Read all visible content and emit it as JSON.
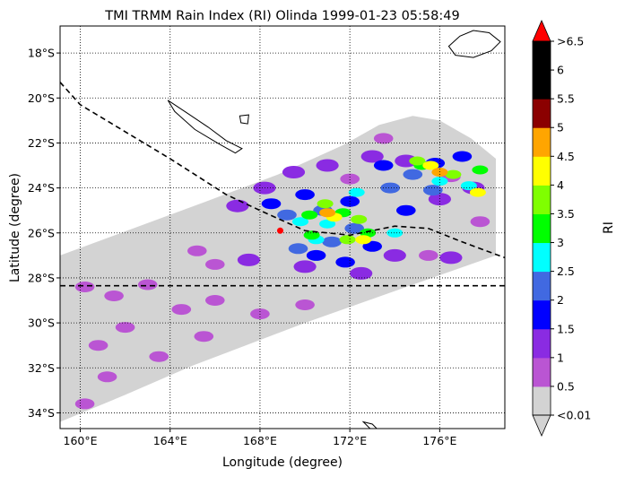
{
  "chart_data": {
    "type": "heatmap",
    "title": "TMI TRMM Rain Index (RI) Olinda 1999-01-23 05:58:49",
    "xlabel": "Longitude (degree)",
    "ylabel": "Latitude (degree)",
    "xlim": [
      159.1,
      178.9
    ],
    "ylim": [
      -34.7,
      -16.8
    ],
    "x_ticks": [
      {
        "value": 160,
        "label": "160°E"
      },
      {
        "value": 164,
        "label": "164°E"
      },
      {
        "value": 168,
        "label": "168°E"
      },
      {
        "value": 172,
        "label": "172°E"
      },
      {
        "value": 176,
        "label": "176°E"
      }
    ],
    "y_ticks": [
      {
        "value": -18,
        "label": "18°S"
      },
      {
        "value": -20,
        "label": "20°S"
      },
      {
        "value": -22,
        "label": "22°S"
      },
      {
        "value": -24,
        "label": "24°S"
      },
      {
        "value": -26,
        "label": "26°S"
      },
      {
        "value": -28,
        "label": "28°S"
      },
      {
        "value": -30,
        "label": "30°S"
      },
      {
        "value": -32,
        "label": "32°S"
      },
      {
        "value": -34,
        "label": "34°S"
      }
    ],
    "grid": true,
    "grid_x": [
      160,
      164,
      168,
      172,
      176
    ],
    "grid_y": [
      -18,
      -20,
      -22,
      -24,
      -26,
      -28,
      -30,
      -32,
      -34
    ],
    "colorbar": {
      "label": "RI",
      "tick_labels": [
        "<0.01",
        "0.5",
        "1",
        "1.5",
        "2",
        "2.5",
        "3",
        "3.5",
        "4",
        "4.5",
        "5",
        "5.5",
        "6",
        ">6.5"
      ],
      "colors": [
        "#d3d3d3",
        "#ba55d3",
        "#8a2be2",
        "#0000ff",
        "#4169e1",
        "#00ffff",
        "#00ff00",
        "#7fff00",
        "#ffff00",
        "#ffa500",
        "#8b0000",
        "#000000",
        "#000000",
        "#000000"
      ],
      "over_color": "#ff0000",
      "under_color": "#d3d3d3"
    },
    "swath_outline": [
      [
        159.1,
        -27.0
      ],
      [
        165.6,
        -24.6
      ],
      [
        168.8,
        -23.4
      ],
      [
        171.7,
        -22.1
      ],
      [
        173.3,
        -21.2
      ],
      [
        174.8,
        -20.8
      ],
      [
        176.0,
        -21.0
      ],
      [
        177.4,
        -21.8
      ],
      [
        178.5,
        -22.7
      ],
      [
        178.5,
        -27.0
      ],
      [
        174.8,
        -28.3
      ],
      [
        170.0,
        -30.0
      ],
      [
        165.0,
        -31.9
      ],
      [
        162.0,
        -33.2
      ],
      [
        159.1,
        -34.4
      ]
    ],
    "storm_center": {
      "lon": 168.9,
      "lat": -25.9
    },
    "dashed_tracks": [
      [
        [
          159.1,
          -19.3
        ],
        [
          160.0,
          -20.3
        ],
        [
          162.0,
          -21.5
        ],
        [
          164.0,
          -22.7
        ],
        [
          166.5,
          -24.3
        ],
        [
          168.0,
          -25.0
        ],
        [
          170.0,
          -25.9
        ],
        [
          172.0,
          -26.1
        ],
        [
          174.0,
          -25.7
        ],
        [
          175.5,
          -25.8
        ],
        [
          177.0,
          -26.4
        ],
        [
          178.9,
          -27.1
        ]
      ],
      [
        [
          159.1,
          -28.35
        ],
        [
          178.9,
          -28.35
        ]
      ]
    ],
    "coastlines": [
      [
        [
          176.4,
          -17.7
        ],
        [
          176.9,
          -17.25
        ],
        [
          177.5,
          -17.0
        ],
        [
          178.2,
          -17.1
        ],
        [
          178.7,
          -17.5
        ],
        [
          178.3,
          -17.9
        ],
        [
          177.5,
          -18.2
        ],
        [
          176.7,
          -18.1
        ],
        [
          176.4,
          -17.7
        ]
      ],
      [
        [
          163.9,
          -20.1
        ],
        [
          164.8,
          -20.7
        ],
        [
          165.7,
          -21.3
        ],
        [
          166.5,
          -21.9
        ],
        [
          167.2,
          -22.25
        ],
        [
          166.9,
          -22.45
        ],
        [
          166.1,
          -22.0
        ],
        [
          165.1,
          -21.4
        ],
        [
          164.2,
          -20.6
        ],
        [
          163.9,
          -20.1
        ]
      ],
      [
        [
          167.1,
          -20.8
        ],
        [
          167.5,
          -20.75
        ],
        [
          167.45,
          -21.15
        ],
        [
          167.15,
          -21.1
        ],
        [
          167.1,
          -20.8
        ]
      ],
      [
        [
          172.6,
          -34.4
        ],
        [
          173.0,
          -34.5
        ],
        [
          173.3,
          -34.8
        ],
        [
          172.9,
          -34.7
        ],
        [
          172.6,
          -34.4
        ]
      ]
    ],
    "rain_bands": [
      {
        "ri": 0.5,
        "points": [
          [
            160.2,
            -28.4
          ],
          [
            161.5,
            -28.8
          ],
          [
            163.0,
            -28.3
          ],
          [
            164.5,
            -29.4
          ],
          [
            166.0,
            -29.0
          ],
          [
            168.0,
            -29.6
          ],
          [
            170.0,
            -29.2
          ],
          [
            162.0,
            -30.2
          ],
          [
            160.8,
            -31.0
          ],
          [
            163.5,
            -31.5
          ],
          [
            165.5,
            -30.6
          ],
          [
            161.2,
            -32.4
          ],
          [
            160.2,
            -33.6
          ],
          [
            165.2,
            -26.8
          ],
          [
            166.0,
            -27.4
          ],
          [
            172.0,
            -23.6
          ],
          [
            176.5,
            -23.5
          ],
          [
            173.5,
            -21.8
          ],
          [
            177.8,
            -25.5
          ],
          [
            175.5,
            -27.0
          ]
        ]
      },
      {
        "ri": 1.0,
        "points": [
          [
            167.0,
            -24.8
          ],
          [
            168.2,
            -24.0
          ],
          [
            169.5,
            -23.3
          ],
          [
            171.0,
            -23.0
          ],
          [
            173.0,
            -22.6
          ],
          [
            174.5,
            -22.8
          ],
          [
            176.0,
            -24.5
          ],
          [
            177.5,
            -24.0
          ],
          [
            170.0,
            -27.5
          ],
          [
            172.5,
            -27.8
          ],
          [
            174.0,
            -27.0
          ],
          [
            167.5,
            -27.2
          ],
          [
            176.5,
            -27.1
          ]
        ]
      },
      {
        "ri": 1.5,
        "points": [
          [
            168.5,
            -24.7
          ],
          [
            170.0,
            -24.3
          ],
          [
            172.0,
            -24.6
          ],
          [
            173.5,
            -23.0
          ],
          [
            174.5,
            -25.0
          ],
          [
            170.5,
            -27.0
          ],
          [
            171.8,
            -27.3
          ],
          [
            173.0,
            -26.6
          ],
          [
            175.8,
            -22.9
          ],
          [
            177.0,
            -22.6
          ]
        ]
      },
      {
        "ri": 2.0,
        "points": [
          [
            169.2,
            -25.2
          ],
          [
            170.8,
            -25.0
          ],
          [
            172.2,
            -25.8
          ],
          [
            173.8,
            -24.0
          ],
          [
            174.8,
            -23.4
          ],
          [
            175.7,
            -24.1
          ],
          [
            169.7,
            -26.7
          ],
          [
            171.2,
            -26.4
          ]
        ]
      },
      {
        "ri": 2.5,
        "points": [
          [
            169.8,
            -25.5
          ],
          [
            171.0,
            -25.6
          ],
          [
            172.3,
            -24.2
          ],
          [
            174.0,
            -26.0
          ],
          [
            176.0,
            -23.7
          ],
          [
            177.3,
            -23.9
          ],
          [
            170.5,
            -26.3
          ]
        ]
      },
      {
        "ri": 3.0,
        "points": [
          [
            170.2,
            -25.2
          ],
          [
            171.7,
            -25.1
          ],
          [
            172.8,
            -26.0
          ],
          [
            175.2,
            -23.0
          ],
          [
            177.8,
            -23.2
          ],
          [
            170.3,
            -26.1
          ]
        ]
      },
      {
        "ri": 3.5,
        "points": [
          [
            170.9,
            -24.7
          ],
          [
            172.4,
            -25.4
          ],
          [
            175.0,
            -22.8
          ],
          [
            176.6,
            -23.4
          ],
          [
            171.9,
            -26.3
          ]
        ]
      },
      {
        "ri": 4.0,
        "points": [
          [
            171.3,
            -25.3
          ],
          [
            175.6,
            -23.0
          ],
          [
            177.7,
            -24.2
          ],
          [
            172.6,
            -26.3
          ]
        ]
      },
      {
        "ri": 4.5,
        "points": [
          [
            171.0,
            -25.1
          ],
          [
            176.0,
            -23.3
          ]
        ]
      }
    ]
  }
}
